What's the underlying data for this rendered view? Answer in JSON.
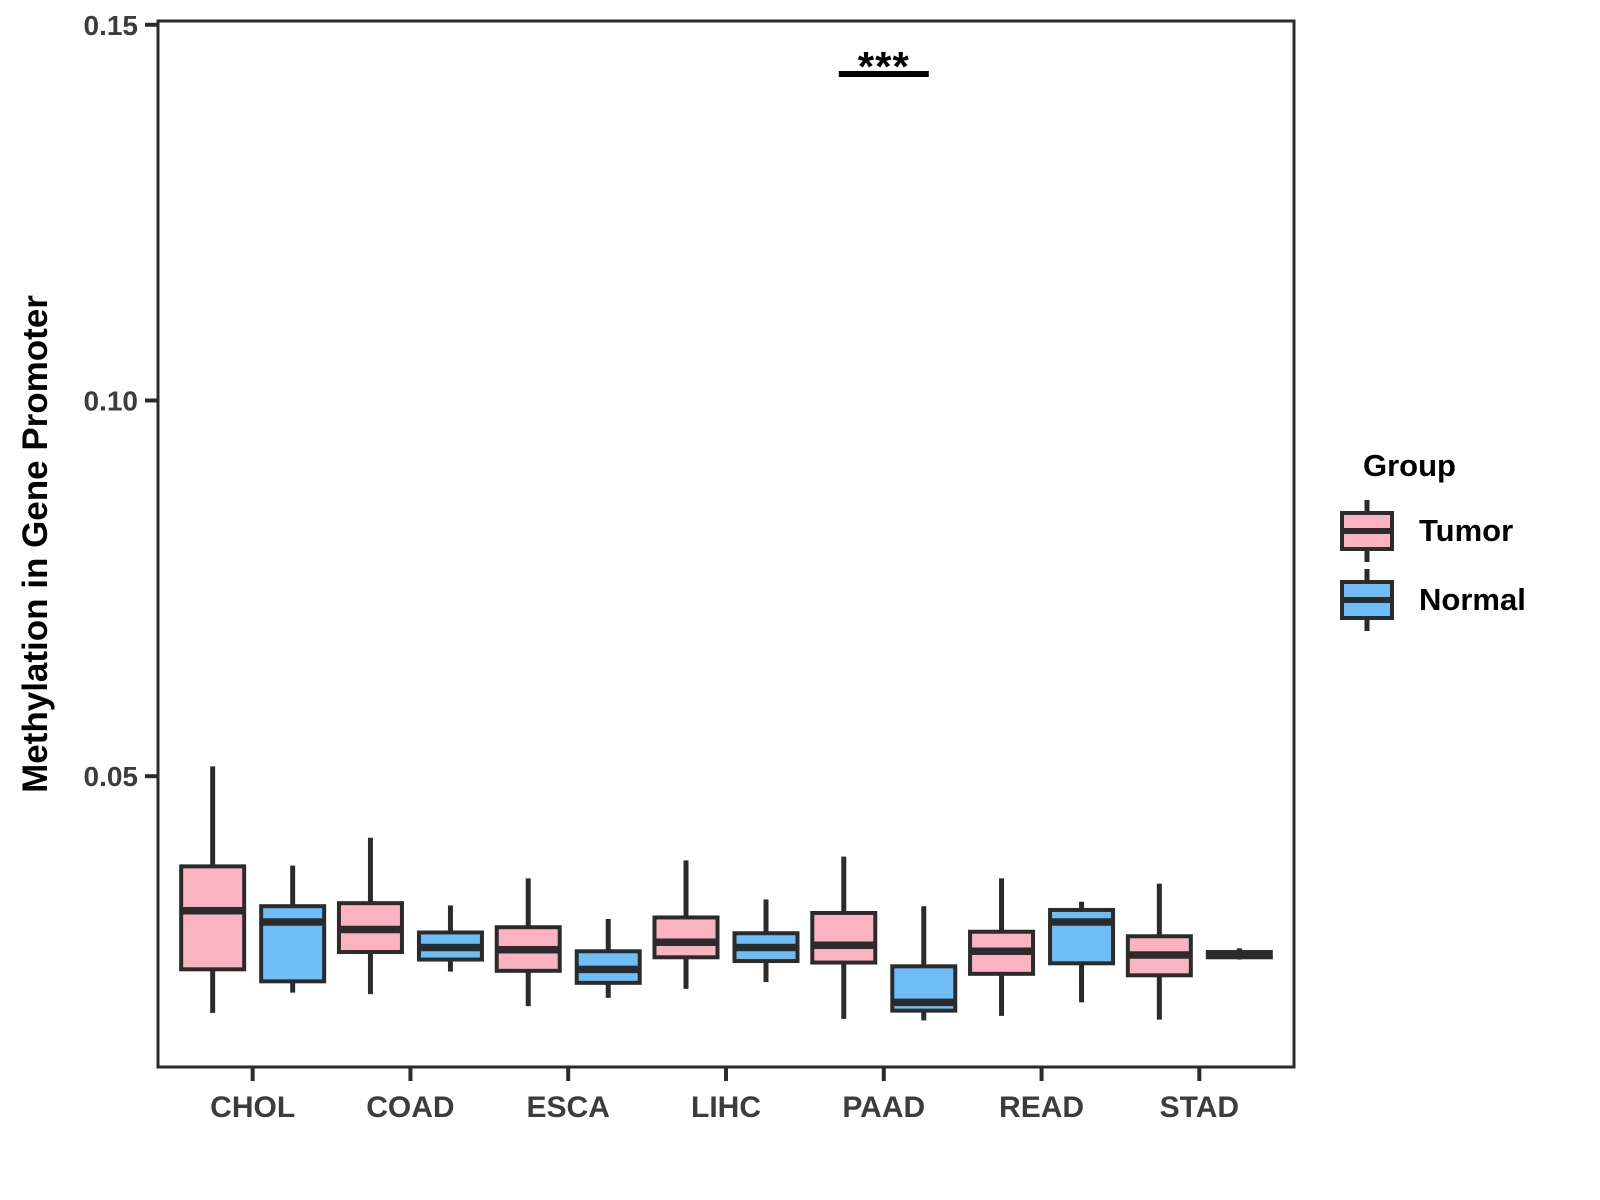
{
  "chart_data": {
    "type": "boxplot",
    "title": "",
    "xlabel": "",
    "ylabel": "Methylation in Gene Promoter",
    "categories": [
      "CHOL",
      "COAD",
      "ESCA",
      "LIHC",
      "PAAD",
      "READ",
      "STAD"
    ],
    "axes": {
      "yticks": [
        0.05,
        0.1,
        0.15
      ],
      "ytick_labels": [
        "0.05",
        "0.10",
        "0.15"
      ],
      "ylim": [
        0.0113,
        0.1505
      ],
      "grid": false
    },
    "legend": {
      "title": "Group",
      "position": "right",
      "entries": [
        {
          "name": "Tumor",
          "color": "#FBB3C2"
        },
        {
          "name": "Normal",
          "color": "#6FBDF7"
        }
      ]
    },
    "series": [
      {
        "name": "Tumor",
        "color": "#FBB3C2",
        "stats": [
          {
            "category": "CHOL",
            "min": 0.0185,
            "q1": 0.0243,
            "median": 0.0321,
            "q3": 0.038,
            "max": 0.0513
          },
          {
            "category": "COAD",
            "min": 0.021,
            "q1": 0.0266,
            "median": 0.0296,
            "q3": 0.0331,
            "max": 0.0418
          },
          {
            "category": "ESCA",
            "min": 0.0194,
            "q1": 0.0241,
            "median": 0.0269,
            "q3": 0.0299,
            "max": 0.0364
          },
          {
            "category": "LIHC",
            "min": 0.0217,
            "q1": 0.0259,
            "median": 0.0279,
            "q3": 0.0312,
            "max": 0.0388
          },
          {
            "category": "PAAD",
            "min": 0.0177,
            "q1": 0.0252,
            "median": 0.0275,
            "q3": 0.0318,
            "max": 0.0393
          },
          {
            "category": "READ",
            "min": 0.0181,
            "q1": 0.0237,
            "median": 0.0267,
            "q3": 0.0293,
            "max": 0.0364
          },
          {
            "category": "STAD",
            "min": 0.0176,
            "q1": 0.0235,
            "median": 0.0262,
            "q3": 0.0287,
            "max": 0.0357
          }
        ]
      },
      {
        "name": "Normal",
        "color": "#6FBDF7",
        "stats": [
          {
            "category": "CHOL",
            "min": 0.0212,
            "q1": 0.0227,
            "median": 0.0306,
            "q3": 0.0327,
            "max": 0.0381
          },
          {
            "category": "COAD",
            "min": 0.024,
            "q1": 0.0256,
            "median": 0.0272,
            "q3": 0.0292,
            "max": 0.0328
          },
          {
            "category": "ESCA",
            "min": 0.0205,
            "q1": 0.0225,
            "median": 0.0243,
            "q3": 0.0267,
            "max": 0.031
          },
          {
            "category": "LIHC",
            "min": 0.0226,
            "q1": 0.0254,
            "median": 0.0272,
            "q3": 0.0291,
            "max": 0.0336
          },
          {
            "category": "PAAD",
            "min": 0.0175,
            "q1": 0.0188,
            "median": 0.0199,
            "q3": 0.0247,
            "max": 0.0327
          },
          {
            "category": "READ",
            "min": 0.0199,
            "q1": 0.0251,
            "median": 0.0306,
            "q3": 0.0322,
            "max": 0.0333
          },
          {
            "category": "STAD",
            "min": 0.0256,
            "q1": 0.0259,
            "median": 0.0263,
            "q3": 0.0266,
            "max": 0.0271
          }
        ]
      }
    ],
    "annotations": [
      {
        "type": "significance",
        "category": "PAAD",
        "label": "***"
      }
    ],
    "style": {
      "box_stroke": "#2B2B2B",
      "axis_color": "#2B2B2B",
      "tick_label_color": "#3C3C3C",
      "annotation_color": "#000000",
      "background": "#FFFFFF"
    }
  }
}
